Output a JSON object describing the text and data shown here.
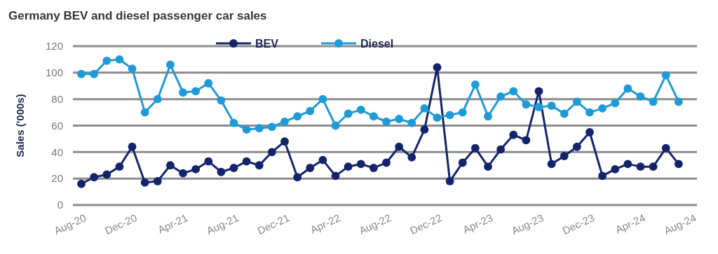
{
  "chart_data": {
    "type": "line",
    "title": "Germany BEV and diesel passenger car sales",
    "ylabel": "Sales ('000s)",
    "categories": [
      "Aug-20",
      null,
      null,
      null,
      "Dec-20",
      null,
      null,
      null,
      "Apr-21",
      null,
      null,
      null,
      "Aug-21",
      null,
      null,
      null,
      "Dec-21",
      null,
      null,
      null,
      "Apr-22",
      null,
      null,
      null,
      "Aug-22",
      null,
      null,
      null,
      "Dec-22",
      null,
      null,
      null,
      "Apr-23",
      null,
      null,
      null,
      "Aug-23",
      null,
      null,
      null,
      "Dec-23",
      null,
      null,
      null,
      "Apr-24",
      null,
      null,
      null,
      "Aug-24"
    ],
    "series": [
      {
        "name": "BEV",
        "color": "#14246b",
        "values": [
          16,
          21,
          23,
          29,
          44,
          17,
          18,
          30,
          24,
          27,
          33,
          25,
          28,
          33,
          30,
          40,
          48,
          21,
          28,
          34,
          22,
          29,
          31,
          28,
          32,
          44,
          36,
          57,
          104,
          18,
          32,
          43,
          29,
          42,
          53,
          49,
          86,
          31,
          37,
          44,
          55,
          22,
          27,
          31,
          29,
          29,
          43,
          31,
          null
        ]
      },
      {
        "name": "Diesel",
        "color": "#1e9ad6",
        "values": [
          99,
          99,
          109,
          110,
          103,
          70,
          80,
          106,
          85,
          86,
          92,
          79,
          62,
          57,
          58,
          59,
          63,
          67,
          71,
          80,
          60,
          69,
          72,
          67,
          63,
          65,
          62,
          73,
          66,
          68,
          70,
          91,
          67,
          82,
          86,
          76,
          74,
          75,
          69,
          78,
          70,
          73,
          77,
          88,
          82,
          78,
          98,
          78,
          null
        ]
      }
    ],
    "ylim": [
      0,
      120
    ],
    "yticks": [
      0,
      20,
      40,
      60,
      80,
      100,
      120
    ],
    "grid": "y",
    "legend": "top",
    "marker": "circle",
    "line_style": "solid"
  }
}
